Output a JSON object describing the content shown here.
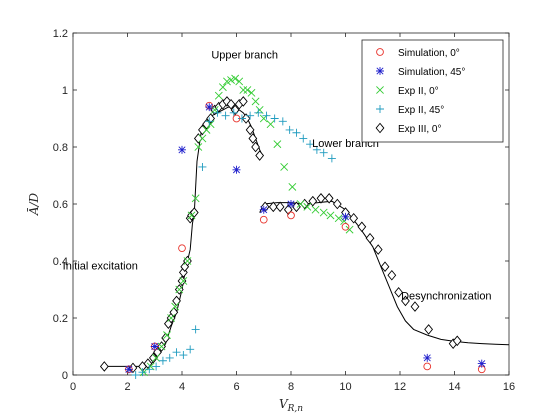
{
  "chart_data": {
    "type": "scatter",
    "xlabel": "V_{R,n}",
    "ylabel": "Ā/D",
    "xlim": [
      0,
      16
    ],
    "ylim": [
      0,
      1.2
    ],
    "xticks": [
      0,
      2,
      4,
      6,
      8,
      10,
      12,
      14,
      16
    ],
    "yticks": [
      0,
      0.2,
      0.4,
      0.6,
      0.8,
      1,
      1.2
    ],
    "xtick_labels": [
      "0",
      "2",
      "4",
      "6",
      "8",
      "10",
      "12",
      "14",
      "16"
    ],
    "ytick_labels": [
      "0",
      "0.2",
      "0.4",
      "0.6",
      "0.8",
      "1",
      "1.2"
    ],
    "grid": false,
    "legend_position": "top-right",
    "annotations": [
      {
        "text": "Upper branch",
        "x": 6.3,
        "y": 1.11
      },
      {
        "text": "Lower branch",
        "x": 10.0,
        "y": 0.8
      },
      {
        "text": "Initial excitation",
        "x": 1.0,
        "y": 0.37
      },
      {
        "text": "Desynchronization",
        "x": 13.7,
        "y": 0.265
      }
    ],
    "series": [
      {
        "name": "Simulation, 0°",
        "marker": "circle",
        "color": "#e8322b",
        "x": [
          2.05,
          3.0,
          4.0,
          5.0,
          6.0,
          7.0,
          8.0,
          10.0,
          13.0,
          15.0
        ],
        "y": [
          0.02,
          0.1,
          0.445,
          0.945,
          0.9,
          0.545,
          0.56,
          0.52,
          0.03,
          0.02
        ]
      },
      {
        "name": "Simulation, 45°",
        "marker": "asterisk",
        "color": "#1f1fcc",
        "x": [
          2.05,
          3.0,
          4.0,
          5.0,
          6.0,
          7.0,
          8.0,
          10.0,
          13.0,
          15.0
        ],
        "y": [
          0.02,
          0.1,
          0.79,
          0.94,
          0.72,
          0.58,
          0.6,
          0.555,
          0.06,
          0.04
        ]
      },
      {
        "name": "Exp II, 0°",
        "marker": "x",
        "color": "#33cc33",
        "x": [
          2.6,
          2.85,
          3.05,
          3.25,
          3.45,
          3.6,
          3.75,
          3.9,
          4.05,
          4.2,
          4.35,
          4.5,
          4.6,
          4.75,
          4.9,
          5.05,
          5.2,
          5.35,
          5.5,
          5.65,
          5.8,
          5.95,
          6.1,
          6.25,
          6.4,
          6.55,
          6.7,
          6.85,
          7.0,
          7.25,
          7.5,
          7.75,
          8.05,
          8.35,
          8.6,
          8.9,
          9.2,
          9.45,
          9.75,
          9.95,
          10.15
        ],
        "y": [
          0.01,
          0.03,
          0.06,
          0.1,
          0.14,
          0.2,
          0.24,
          0.3,
          0.33,
          0.4,
          0.56,
          0.62,
          0.8,
          0.83,
          0.86,
          0.88,
          0.93,
          0.98,
          1.01,
          1.03,
          1.035,
          1.04,
          1.03,
          1.0,
          1.0,
          0.99,
          0.96,
          0.93,
          0.9,
          0.88,
          0.81,
          0.73,
          0.66,
          0.6,
          0.59,
          0.58,
          0.57,
          0.56,
          0.55,
          0.54,
          0.51
        ]
      },
      {
        "name": "Exp II, 45°",
        "marker": "plus",
        "color": "#1f9bbf",
        "x": [
          2.3,
          2.55,
          2.8,
          3.05,
          3.3,
          3.55,
          3.8,
          4.05,
          4.3,
          4.5,
          4.75,
          5.0,
          5.3,
          5.6,
          5.9,
          6.2,
          6.5,
          6.8,
          7.1,
          7.4,
          7.7,
          7.95,
          8.2,
          8.45,
          8.7,
          8.95,
          9.2,
          9.5
        ],
        "y": [
          0.0,
          0.01,
          0.02,
          0.03,
          0.05,
          0.06,
          0.08,
          0.07,
          0.09,
          0.16,
          0.73,
          0.89,
          0.92,
          0.91,
          0.92,
          0.9,
          0.91,
          0.92,
          0.91,
          0.9,
          0.89,
          0.86,
          0.85,
          0.83,
          0.81,
          0.79,
          0.78,
          0.76
        ]
      },
      {
        "name": "Exp III, 0°",
        "marker": "diamond",
        "color": "#000000",
        "x": [
          1.15,
          2.2,
          2.55,
          2.75,
          2.95,
          3.1,
          3.25,
          3.4,
          3.5,
          3.6,
          3.7,
          3.8,
          3.9,
          4.0,
          4.05,
          4.1,
          4.2,
          4.3,
          4.35,
          4.45,
          4.6,
          4.75,
          4.9,
          5.05,
          5.2,
          5.35,
          5.5,
          5.65,
          5.8,
          5.95,
          6.1,
          6.25,
          6.35,
          6.5,
          6.6,
          6.7,
          6.85,
          7.05,
          7.35,
          7.6,
          7.9,
          8.2,
          8.5,
          8.8,
          9.1,
          9.4,
          9.7,
          10.0,
          10.3,
          10.6,
          10.9,
          11.2,
          11.45,
          11.7,
          11.95,
          12.2,
          12.55,
          13.05,
          13.95,
          14.1
        ],
        "y": [
          0.03,
          0.025,
          0.03,
          0.04,
          0.06,
          0.08,
          0.1,
          0.13,
          0.18,
          0.2,
          0.22,
          0.26,
          0.3,
          0.33,
          0.36,
          0.38,
          0.4,
          0.55,
          0.56,
          0.57,
          0.83,
          0.86,
          0.88,
          0.9,
          0.93,
          0.94,
          0.95,
          0.96,
          0.95,
          0.93,
          0.95,
          0.96,
          0.9,
          0.86,
          0.83,
          0.8,
          0.77,
          0.59,
          0.59,
          0.59,
          0.58,
          0.59,
          0.6,
          0.61,
          0.62,
          0.62,
          0.6,
          0.57,
          0.55,
          0.52,
          0.48,
          0.44,
          0.38,
          0.35,
          0.29,
          0.26,
          0.24,
          0.16,
          0.11,
          0.12
        ]
      }
    ],
    "fit_curves": [
      {
        "color": "#000000",
        "x": [
          1.15,
          2.0,
          2.5,
          2.8,
          3.0,
          3.2,
          3.4,
          3.6,
          3.8,
          4.0,
          4.15,
          4.3,
          4.38,
          4.45,
          4.55,
          4.7,
          4.9,
          5.1,
          5.3,
          5.5,
          5.7,
          5.9,
          6.1,
          6.25,
          6.4,
          6.55,
          6.7,
          6.85,
          6.95
        ],
        "y": [
          0.03,
          0.03,
          0.03,
          0.035,
          0.05,
          0.08,
          0.11,
          0.17,
          0.22,
          0.3,
          0.38,
          0.44,
          0.53,
          0.57,
          0.75,
          0.85,
          0.89,
          0.91,
          0.92,
          0.93,
          0.94,
          0.94,
          0.93,
          0.92,
          0.9,
          0.87,
          0.83,
          0.79,
          0.77
        ]
      },
      {
        "color": "#000000",
        "x": [
          6.85,
          7.0,
          7.5,
          8.0,
          8.5,
          9.0,
          9.5,
          10.0,
          10.5,
          11.0,
          11.3,
          11.6,
          11.9,
          12.2,
          12.5,
          13.0,
          13.5,
          14.0,
          14.5,
          15.0,
          15.5,
          16.0
        ],
        "y": [
          0.57,
          0.6,
          0.605,
          0.605,
          0.6,
          0.605,
          0.61,
          0.58,
          0.52,
          0.45,
          0.38,
          0.31,
          0.24,
          0.19,
          0.16,
          0.14,
          0.125,
          0.118,
          0.113,
          0.11,
          0.108,
          0.106
        ]
      }
    ]
  }
}
